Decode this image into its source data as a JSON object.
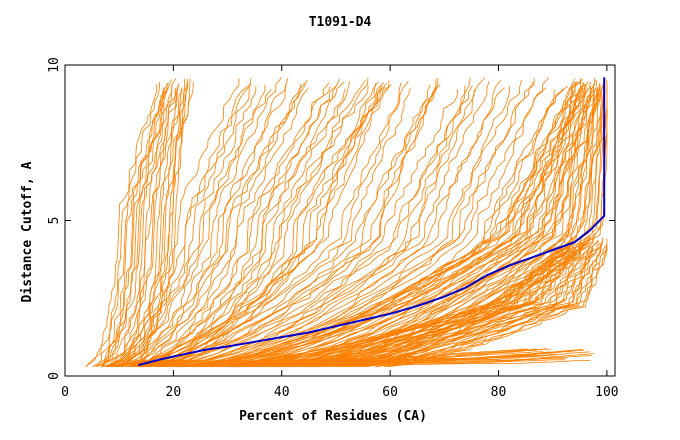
{
  "chart_data": {
    "type": "line",
    "title": "T1091-D4",
    "xlabel": "Percent of Residues (CA)",
    "ylabel": "Distance Cutoff, A",
    "xlim": [
      0,
      101.5
    ],
    "ylim": [
      0,
      10
    ],
    "xticks": [
      0,
      20,
      40,
      60,
      80,
      100
    ],
    "yticks": [
      0,
      5,
      10
    ],
    "grid": false,
    "colors": {
      "highlight": "#0000cc",
      "models": "#ff8000"
    },
    "series": [
      {
        "color": "#0000cc",
        "x": [
          13.5,
          18,
          22,
          26,
          30,
          35,
          40,
          45,
          50,
          55,
          60,
          65,
          70,
          74,
          78,
          82,
          86,
          90,
          94,
          97,
          99.5,
          99.5
        ],
        "y": [
          0.35,
          0.55,
          0.7,
          0.85,
          0.95,
          1.1,
          1.25,
          1.4,
          1.6,
          1.8,
          2.0,
          2.25,
          2.55,
          2.85,
          3.25,
          3.55,
          3.8,
          4.05,
          4.3,
          4.7,
          5.15,
          9.6
        ]
      }
    ],
    "bundles": [
      {
        "count": 22,
        "y0": 0.3,
        "y1": 9.6,
        "start": [
          4,
          12
        ],
        "mid": [
          9,
          20
        ],
        "end": [
          17,
          23
        ],
        "curv": 2.2
      },
      {
        "count": 28,
        "y0": 0.3,
        "y1": 9.6,
        "start": [
          6,
          16
        ],
        "mid": [
          20,
          45
        ],
        "end": [
          30,
          60
        ],
        "curv": 1.9
      },
      {
        "count": 30,
        "y0": 0.3,
        "y1": 9.6,
        "start": [
          8,
          25
        ],
        "mid": [
          45,
          80
        ],
        "end": [
          55,
          92
        ],
        "curv": 1.7
      },
      {
        "count": 45,
        "y0": 0.3,
        "y1": 9.6,
        "start": [
          20,
          55
        ],
        "mid": [
          80,
          99
        ],
        "end": [
          94,
          100
        ],
        "curv": 1.6
      },
      {
        "count": 40,
        "y0": 0.3,
        "y1": 4.5,
        "start": [
          25,
          60
        ],
        "mid": [
          78,
          96
        ],
        "end": [
          92,
          100
        ],
        "curv": 1.4
      },
      {
        "count": 18,
        "y0": 0.3,
        "y1": 0.9,
        "start": [
          15,
          45
        ],
        "mid": [
          60,
          85
        ],
        "end": [
          85,
          98
        ],
        "curv": 1.0
      }
    ]
  }
}
